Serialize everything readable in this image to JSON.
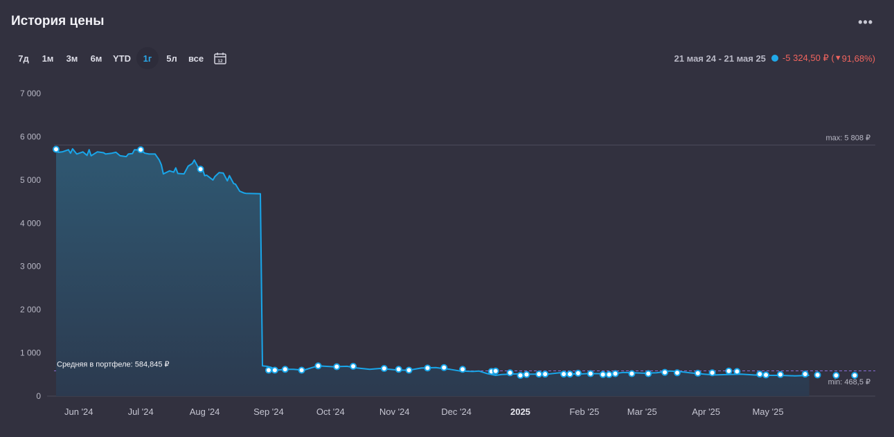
{
  "header": {
    "title": "История цены",
    "more_label": "•••"
  },
  "ranges": [
    {
      "label": "7д",
      "active": false
    },
    {
      "label": "1м",
      "active": false
    },
    {
      "label": "3м",
      "active": false
    },
    {
      "label": "6м",
      "active": false
    },
    {
      "label": "YTD",
      "active": false
    },
    {
      "label": "1г",
      "active": true
    },
    {
      "label": "5л",
      "active": false
    },
    {
      "label": "все",
      "active": false
    }
  ],
  "calendar_icon_label": "12",
  "summary": {
    "period": "21 мая 24 - 21 мая 25",
    "change_text": "-5 324,50 ₽ (",
    "change_arrow": "▼",
    "change_pct": " 91,68%)"
  },
  "colors": {
    "line": "#19a6ea",
    "area_top": "#2f5872",
    "area_bottom": "#2c3a4f",
    "negative": "#f0645e",
    "average_line": "#8a6fd8"
  },
  "chart_data": {
    "type": "area",
    "series": [
      {
        "points": [
          [
            "2024-05-21",
            5710
          ],
          [
            "2024-05-22",
            5640
          ],
          [
            "2024-05-24",
            5650
          ],
          [
            "2024-05-27",
            5700
          ],
          [
            "2024-05-28",
            5620
          ],
          [
            "2024-05-29",
            5720
          ],
          [
            "2024-05-31",
            5600
          ],
          [
            "2024-06-03",
            5650
          ],
          [
            "2024-06-05",
            5570
          ],
          [
            "2024-06-06",
            5700
          ],
          [
            "2024-06-07",
            5560
          ],
          [
            "2024-06-10",
            5650
          ],
          [
            "2024-06-13",
            5630
          ],
          [
            "2024-06-14",
            5600
          ],
          [
            "2024-06-17",
            5620
          ],
          [
            "2024-06-19",
            5640
          ],
          [
            "2024-06-21",
            5560
          ],
          [
            "2024-06-24",
            5540
          ],
          [
            "2024-06-25",
            5600
          ],
          [
            "2024-06-27",
            5610
          ],
          [
            "2024-06-28",
            5700
          ],
          [
            "2024-07-01",
            5690
          ],
          [
            "2024-07-03",
            5620
          ],
          [
            "2024-07-05",
            5600
          ],
          [
            "2024-07-08",
            5600
          ],
          [
            "2024-07-10",
            5460
          ],
          [
            "2024-07-11",
            5350
          ],
          [
            "2024-07-12",
            5140
          ],
          [
            "2024-07-15",
            5210
          ],
          [
            "2024-07-17",
            5180
          ],
          [
            "2024-07-18",
            5280
          ],
          [
            "2024-07-19",
            5150
          ],
          [
            "2024-07-22",
            5140
          ],
          [
            "2024-07-24",
            5320
          ],
          [
            "2024-07-26",
            5380
          ],
          [
            "2024-07-27",
            5460
          ],
          [
            "2024-07-29",
            5280
          ],
          [
            "2024-07-31",
            5250
          ],
          [
            "2024-08-01",
            5100
          ],
          [
            "2024-08-02",
            5110
          ],
          [
            "2024-08-05",
            5000
          ],
          [
            "2024-08-06",
            5080
          ],
          [
            "2024-08-08",
            5170
          ],
          [
            "2024-08-10",
            5160
          ],
          [
            "2024-08-12",
            4980
          ],
          [
            "2024-08-13",
            5100
          ],
          [
            "2024-08-15",
            4920
          ],
          [
            "2024-08-16",
            4900
          ],
          [
            "2024-08-18",
            4740
          ],
          [
            "2024-08-20",
            4700
          ],
          [
            "2024-08-21",
            4690
          ],
          [
            "2024-08-28",
            4680
          ],
          [
            "2024-08-29",
            700
          ],
          [
            "2024-08-31",
            690
          ],
          [
            "2024-09-02",
            670
          ],
          [
            "2024-09-05",
            600
          ],
          [
            "2024-09-07",
            610
          ],
          [
            "2024-09-10",
            620
          ],
          [
            "2024-09-13",
            620
          ],
          [
            "2024-09-18",
            600
          ],
          [
            "2024-09-22",
            660
          ],
          [
            "2024-09-25",
            700
          ],
          [
            "2024-10-02",
            680
          ],
          [
            "2024-10-09",
            690
          ],
          [
            "2024-10-14",
            650
          ],
          [
            "2024-10-20",
            620
          ],
          [
            "2024-10-25",
            640
          ],
          [
            "2024-11-01",
            610
          ],
          [
            "2024-11-05",
            600
          ],
          [
            "2024-11-08",
            600
          ],
          [
            "2024-11-14",
            650
          ],
          [
            "2024-11-21",
            660
          ],
          [
            "2024-11-28",
            620
          ],
          [
            "2024-12-03",
            580
          ],
          [
            "2024-12-09",
            570
          ],
          [
            "2024-12-12",
            580
          ],
          [
            "2024-12-16",
            520
          ],
          [
            "2024-12-20",
            480
          ],
          [
            "2024-12-23",
            500
          ],
          [
            "2024-12-27",
            510
          ],
          [
            "2025-01-02",
            520
          ],
          [
            "2025-01-05",
            510
          ],
          [
            "2025-01-10",
            510
          ],
          [
            "2025-01-14",
            510
          ],
          [
            "2025-01-20",
            540
          ],
          [
            "2025-01-25",
            520
          ],
          [
            "2025-01-29",
            510
          ],
          [
            "2025-02-02",
            520
          ],
          [
            "2025-02-08",
            520
          ],
          [
            "2025-02-15",
            520
          ],
          [
            "2025-02-20",
            550
          ],
          [
            "2025-02-25",
            540
          ],
          [
            "2025-03-02",
            530
          ],
          [
            "2025-03-08",
            540
          ],
          [
            "2025-03-14",
            580
          ],
          [
            "2025-03-19",
            570
          ],
          [
            "2025-03-24",
            540
          ],
          [
            "2025-03-31",
            510
          ],
          [
            "2025-04-05",
            490
          ],
          [
            "2025-04-12",
            500
          ],
          [
            "2025-04-18",
            510
          ],
          [
            "2025-04-24",
            490
          ],
          [
            "2025-04-30",
            480
          ],
          [
            "2025-05-07",
            480
          ],
          [
            "2025-05-14",
            470
          ],
          [
            "2025-05-21",
            480
          ]
        ]
      }
    ],
    "markers": [
      [
        "2024-05-21",
        5710
      ],
      [
        "2024-07-01",
        5700
      ],
      [
        "2024-07-30",
        5250
      ],
      [
        "2024-09-01",
        600
      ],
      [
        "2024-09-04",
        600
      ],
      [
        "2024-09-09",
        620
      ],
      [
        "2024-09-17",
        600
      ],
      [
        "2024-09-25",
        700
      ],
      [
        "2024-10-04",
        680
      ],
      [
        "2024-10-12",
        690
      ],
      [
        "2024-10-27",
        640
      ],
      [
        "2024-11-03",
        620
      ],
      [
        "2024-11-08",
        600
      ],
      [
        "2024-11-17",
        650
      ],
      [
        "2024-11-25",
        660
      ],
      [
        "2024-12-04",
        620
      ],
      [
        "2024-12-18",
        570
      ],
      [
        "2024-12-20",
        580
      ],
      [
        "2024-12-27",
        540
      ],
      [
        "2025-01-01",
        480
      ],
      [
        "2025-01-04",
        500
      ],
      [
        "2025-01-10",
        510
      ],
      [
        "2025-01-13",
        510
      ],
      [
        "2025-01-22",
        510
      ],
      [
        "2025-01-25",
        510
      ],
      [
        "2025-01-29",
        530
      ],
      [
        "2025-02-04",
        520
      ],
      [
        "2025-02-10",
        500
      ],
      [
        "2025-02-13",
        500
      ],
      [
        "2025-02-16",
        520
      ],
      [
        "2025-02-24",
        520
      ],
      [
        "2025-03-04",
        520
      ],
      [
        "2025-03-12",
        550
      ],
      [
        "2025-03-18",
        540
      ],
      [
        "2025-03-28",
        530
      ],
      [
        "2025-04-04",
        540
      ],
      [
        "2025-04-12",
        580
      ],
      [
        "2025-04-16",
        570
      ],
      [
        "2025-04-27",
        510
      ],
      [
        "2025-04-30",
        490
      ],
      [
        "2025-05-07",
        500
      ],
      [
        "2025-05-19",
        510
      ],
      [
        "2025-05-25",
        490
      ],
      [
        "2025-06-03",
        480
      ],
      [
        "2025-06-12",
        480
      ]
    ],
    "x_domain": [
      "2024-05-20",
      "2025-06-22"
    ],
    "x_ticks": [
      {
        "label": "Jun '24",
        "date": "2024-06-01",
        "bold": false
      },
      {
        "label": "Jul '24",
        "date": "2024-07-01",
        "bold": false
      },
      {
        "label": "Aug '24",
        "date": "2024-08-01",
        "bold": false
      },
      {
        "label": "Sep '24",
        "date": "2024-09-01",
        "bold": false
      },
      {
        "label": "Oct '24",
        "date": "2024-10-01",
        "bold": false
      },
      {
        "label": "Nov '24",
        "date": "2024-11-01",
        "bold": false
      },
      {
        "label": "Dec '24",
        "date": "2024-12-01",
        "bold": false
      },
      {
        "label": "2025",
        "date": "2025-01-01",
        "bold": true
      },
      {
        "label": "Feb '25",
        "date": "2025-02-01",
        "bold": false
      },
      {
        "label": "Mar '25",
        "date": "2025-03-01",
        "bold": false
      },
      {
        "label": "Apr '25",
        "date": "2025-04-01",
        "bold": false
      },
      {
        "label": "May '25",
        "date": "2025-05-01",
        "bold": false
      }
    ],
    "y_ticks": [
      {
        "label": "0",
        "value": 0
      },
      {
        "label": "1 000",
        "value": 1000
      },
      {
        "label": "2 000",
        "value": 2000
      },
      {
        "label": "3 000",
        "value": 3000
      },
      {
        "label": "4 000",
        "value": 4000
      },
      {
        "label": "5 000",
        "value": 5000
      },
      {
        "label": "6 000",
        "value": 6000
      },
      {
        "label": "7 000",
        "value": 7000
      }
    ],
    "ylim": [
      0,
      7000
    ],
    "max": {
      "value": 5808,
      "label": "max: 5 808 ₽"
    },
    "min": {
      "value": 468.5,
      "label": "min: 468,5 ₽"
    },
    "average": {
      "value": 584.845,
      "label": "Средняя в портфеле: 584,845 ₽"
    }
  }
}
